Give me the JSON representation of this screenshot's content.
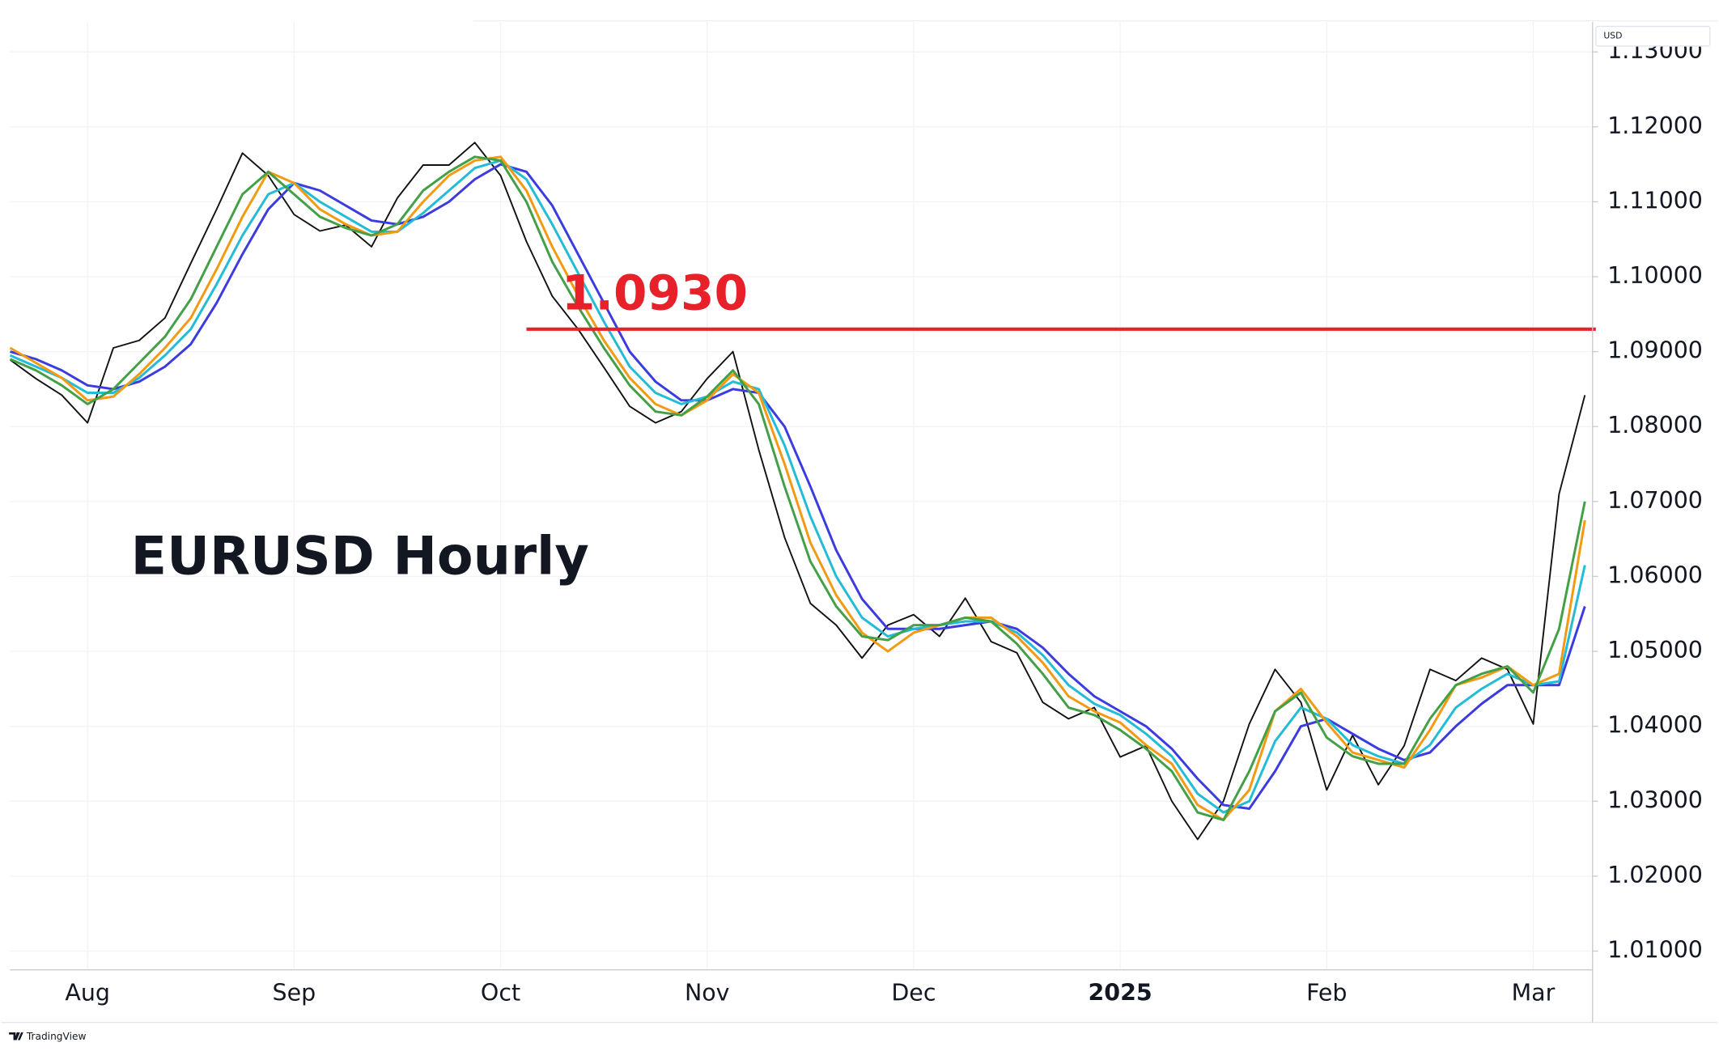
{
  "chart_data": {
    "type": "line",
    "title": "EURUSD Hourly",
    "currency": "USD",
    "watermark": "TradingView",
    "annotation": {
      "text": "1.0930",
      "value": 1.093,
      "color": "#e8202a"
    },
    "categories": [
      null,
      null,
      null,
      "Aug",
      null,
      null,
      null,
      null,
      null,
      null,
      null,
      "Sep",
      null,
      null,
      null,
      null,
      null,
      null,
      null,
      "Oct",
      null,
      null,
      null,
      null,
      null,
      null,
      null,
      "Nov",
      null,
      null,
      null,
      null,
      null,
      null,
      null,
      "Dec",
      null,
      null,
      null,
      null,
      null,
      null,
      null,
      "2025",
      null,
      null,
      null,
      null,
      null,
      null,
      null,
      "Feb",
      null,
      null,
      null,
      null,
      null,
      null,
      null,
      "Mar",
      null,
      null
    ],
    "series": [
      {
        "color": "#111111",
        "values": [
          1.0889,
          1.0864,
          1.0842,
          1.0805,
          1.0905,
          1.0915,
          1.0945,
          1.1018,
          1.109,
          1.1165,
          1.1135,
          1.1083,
          1.1061,
          1.1069,
          1.104,
          1.1105,
          1.1149,
          1.1149,
          1.1179,
          1.1135,
          1.1047,
          1.0974,
          1.093,
          1.0879,
          1.0827,
          1.0805,
          1.082,
          1.0864,
          1.09,
          1.0769,
          1.0652,
          1.0564,
          1.0535,
          1.0491,
          1.0535,
          1.0549,
          1.052,
          1.0571,
          1.0513,
          1.0498,
          1.0432,
          1.041,
          1.0425,
          1.0359,
          1.0374,
          1.03,
          1.0249,
          1.03,
          1.0403,
          1.0476,
          1.0432,
          1.0315,
          1.0388,
          1.0322,
          1.0374,
          1.0476,
          1.0461,
          1.0491,
          1.0476,
          1.0403,
          1.071,
          1.0842
        ]
      },
      {
        "color": "#3b3be0",
        "values": [
          1.09,
          1.089,
          1.0875,
          1.0855,
          1.085,
          1.086,
          1.088,
          1.091,
          1.0965,
          1.103,
          1.109,
          1.1125,
          1.1115,
          1.1095,
          1.1075,
          1.107,
          1.108,
          1.11,
          1.113,
          1.115,
          1.114,
          1.1095,
          1.103,
          1.0965,
          1.09,
          1.086,
          1.0835,
          1.0835,
          1.085,
          1.0845,
          1.08,
          1.072,
          1.0635,
          1.057,
          1.053,
          1.053,
          1.053,
          1.0535,
          1.054,
          1.053,
          1.0505,
          1.047,
          1.044,
          1.042,
          1.04,
          1.037,
          1.033,
          1.0295,
          1.029,
          1.034,
          1.04,
          1.041,
          1.039,
          1.037,
          1.0355,
          1.0365,
          1.04,
          1.043,
          1.0455,
          1.0455,
          1.0455,
          1.056
        ]
      },
      {
        "color": "#22bcd6",
        "values": [
          1.0895,
          1.088,
          1.0865,
          1.0845,
          1.0845,
          1.0865,
          1.0895,
          1.093,
          1.099,
          1.1055,
          1.111,
          1.1125,
          1.11,
          1.108,
          1.106,
          1.106,
          1.1085,
          1.1115,
          1.1145,
          1.1155,
          1.113,
          1.107,
          1.1005,
          1.094,
          1.088,
          1.0845,
          1.083,
          1.084,
          1.086,
          1.085,
          1.0775,
          1.068,
          1.06,
          1.0545,
          1.052,
          1.053,
          1.0535,
          1.054,
          1.054,
          1.0525,
          1.0495,
          1.0455,
          1.043,
          1.0415,
          1.039,
          1.036,
          1.031,
          1.0285,
          1.03,
          1.038,
          1.0425,
          1.041,
          1.0375,
          1.036,
          1.035,
          1.0375,
          1.0425,
          1.045,
          1.047,
          1.0455,
          1.046,
          1.0615
        ]
      },
      {
        "color": "#f29a12",
        "values": [
          1.0905,
          1.0885,
          1.0865,
          1.0835,
          1.084,
          1.087,
          1.0905,
          1.0945,
          1.101,
          1.108,
          1.114,
          1.1125,
          1.109,
          1.107,
          1.1055,
          1.106,
          1.11,
          1.1135,
          1.1155,
          1.116,
          1.1115,
          1.104,
          1.0975,
          1.0915,
          1.0865,
          1.083,
          1.0815,
          1.0835,
          1.087,
          1.0845,
          1.075,
          1.0645,
          1.0575,
          1.0525,
          1.05,
          1.0525,
          1.0535,
          1.0545,
          1.0545,
          1.052,
          1.0485,
          1.044,
          1.042,
          1.0405,
          1.0375,
          1.035,
          1.0295,
          1.0275,
          1.0315,
          1.042,
          1.045,
          1.0405,
          1.0365,
          1.0355,
          1.0345,
          1.0395,
          1.0455,
          1.0465,
          1.048,
          1.0455,
          1.047,
          1.0675
        ]
      },
      {
        "color": "#43a047",
        "values": [
          1.089,
          1.0875,
          1.0855,
          1.083,
          1.085,
          1.0885,
          1.092,
          1.097,
          1.104,
          1.111,
          1.114,
          1.111,
          1.108,
          1.1065,
          1.1055,
          1.107,
          1.1115,
          1.114,
          1.116,
          1.1155,
          1.11,
          1.102,
          1.096,
          1.0905,
          1.0855,
          1.082,
          1.0815,
          1.084,
          1.0875,
          1.083,
          1.072,
          1.062,
          1.056,
          1.052,
          1.0515,
          1.0535,
          1.0535,
          1.0545,
          1.054,
          1.051,
          1.047,
          1.0425,
          1.0415,
          1.0395,
          1.037,
          1.034,
          1.0285,
          1.0275,
          1.034,
          1.042,
          1.0445,
          1.0385,
          1.036,
          1.035,
          1.035,
          1.041,
          1.0455,
          1.047,
          1.048,
          1.0445,
          1.053,
          1.07
        ]
      }
    ],
    "ylim": [
      1.0075,
      1.134
    ],
    "yticks": [
      {
        "value": 1.01,
        "label": "1.01000"
      },
      {
        "value": 1.02,
        "label": "1.02000"
      },
      {
        "value": 1.03,
        "label": "1.03000"
      },
      {
        "value": 1.04,
        "label": "1.04000"
      },
      {
        "value": 1.05,
        "label": "1.05000"
      },
      {
        "value": 1.06,
        "label": "1.06000"
      },
      {
        "value": 1.07,
        "label": "1.07000"
      },
      {
        "value": 1.08,
        "label": "1.08000"
      },
      {
        "value": 1.09,
        "label": "1.09000"
      },
      {
        "value": 1.1,
        "label": "1.10000"
      },
      {
        "value": 1.11,
        "label": "1.11000"
      },
      {
        "value": 1.12,
        "label": "1.12000"
      },
      {
        "value": 1.13,
        "label": "1.13000"
      }
    ],
    "grid": true
  }
}
